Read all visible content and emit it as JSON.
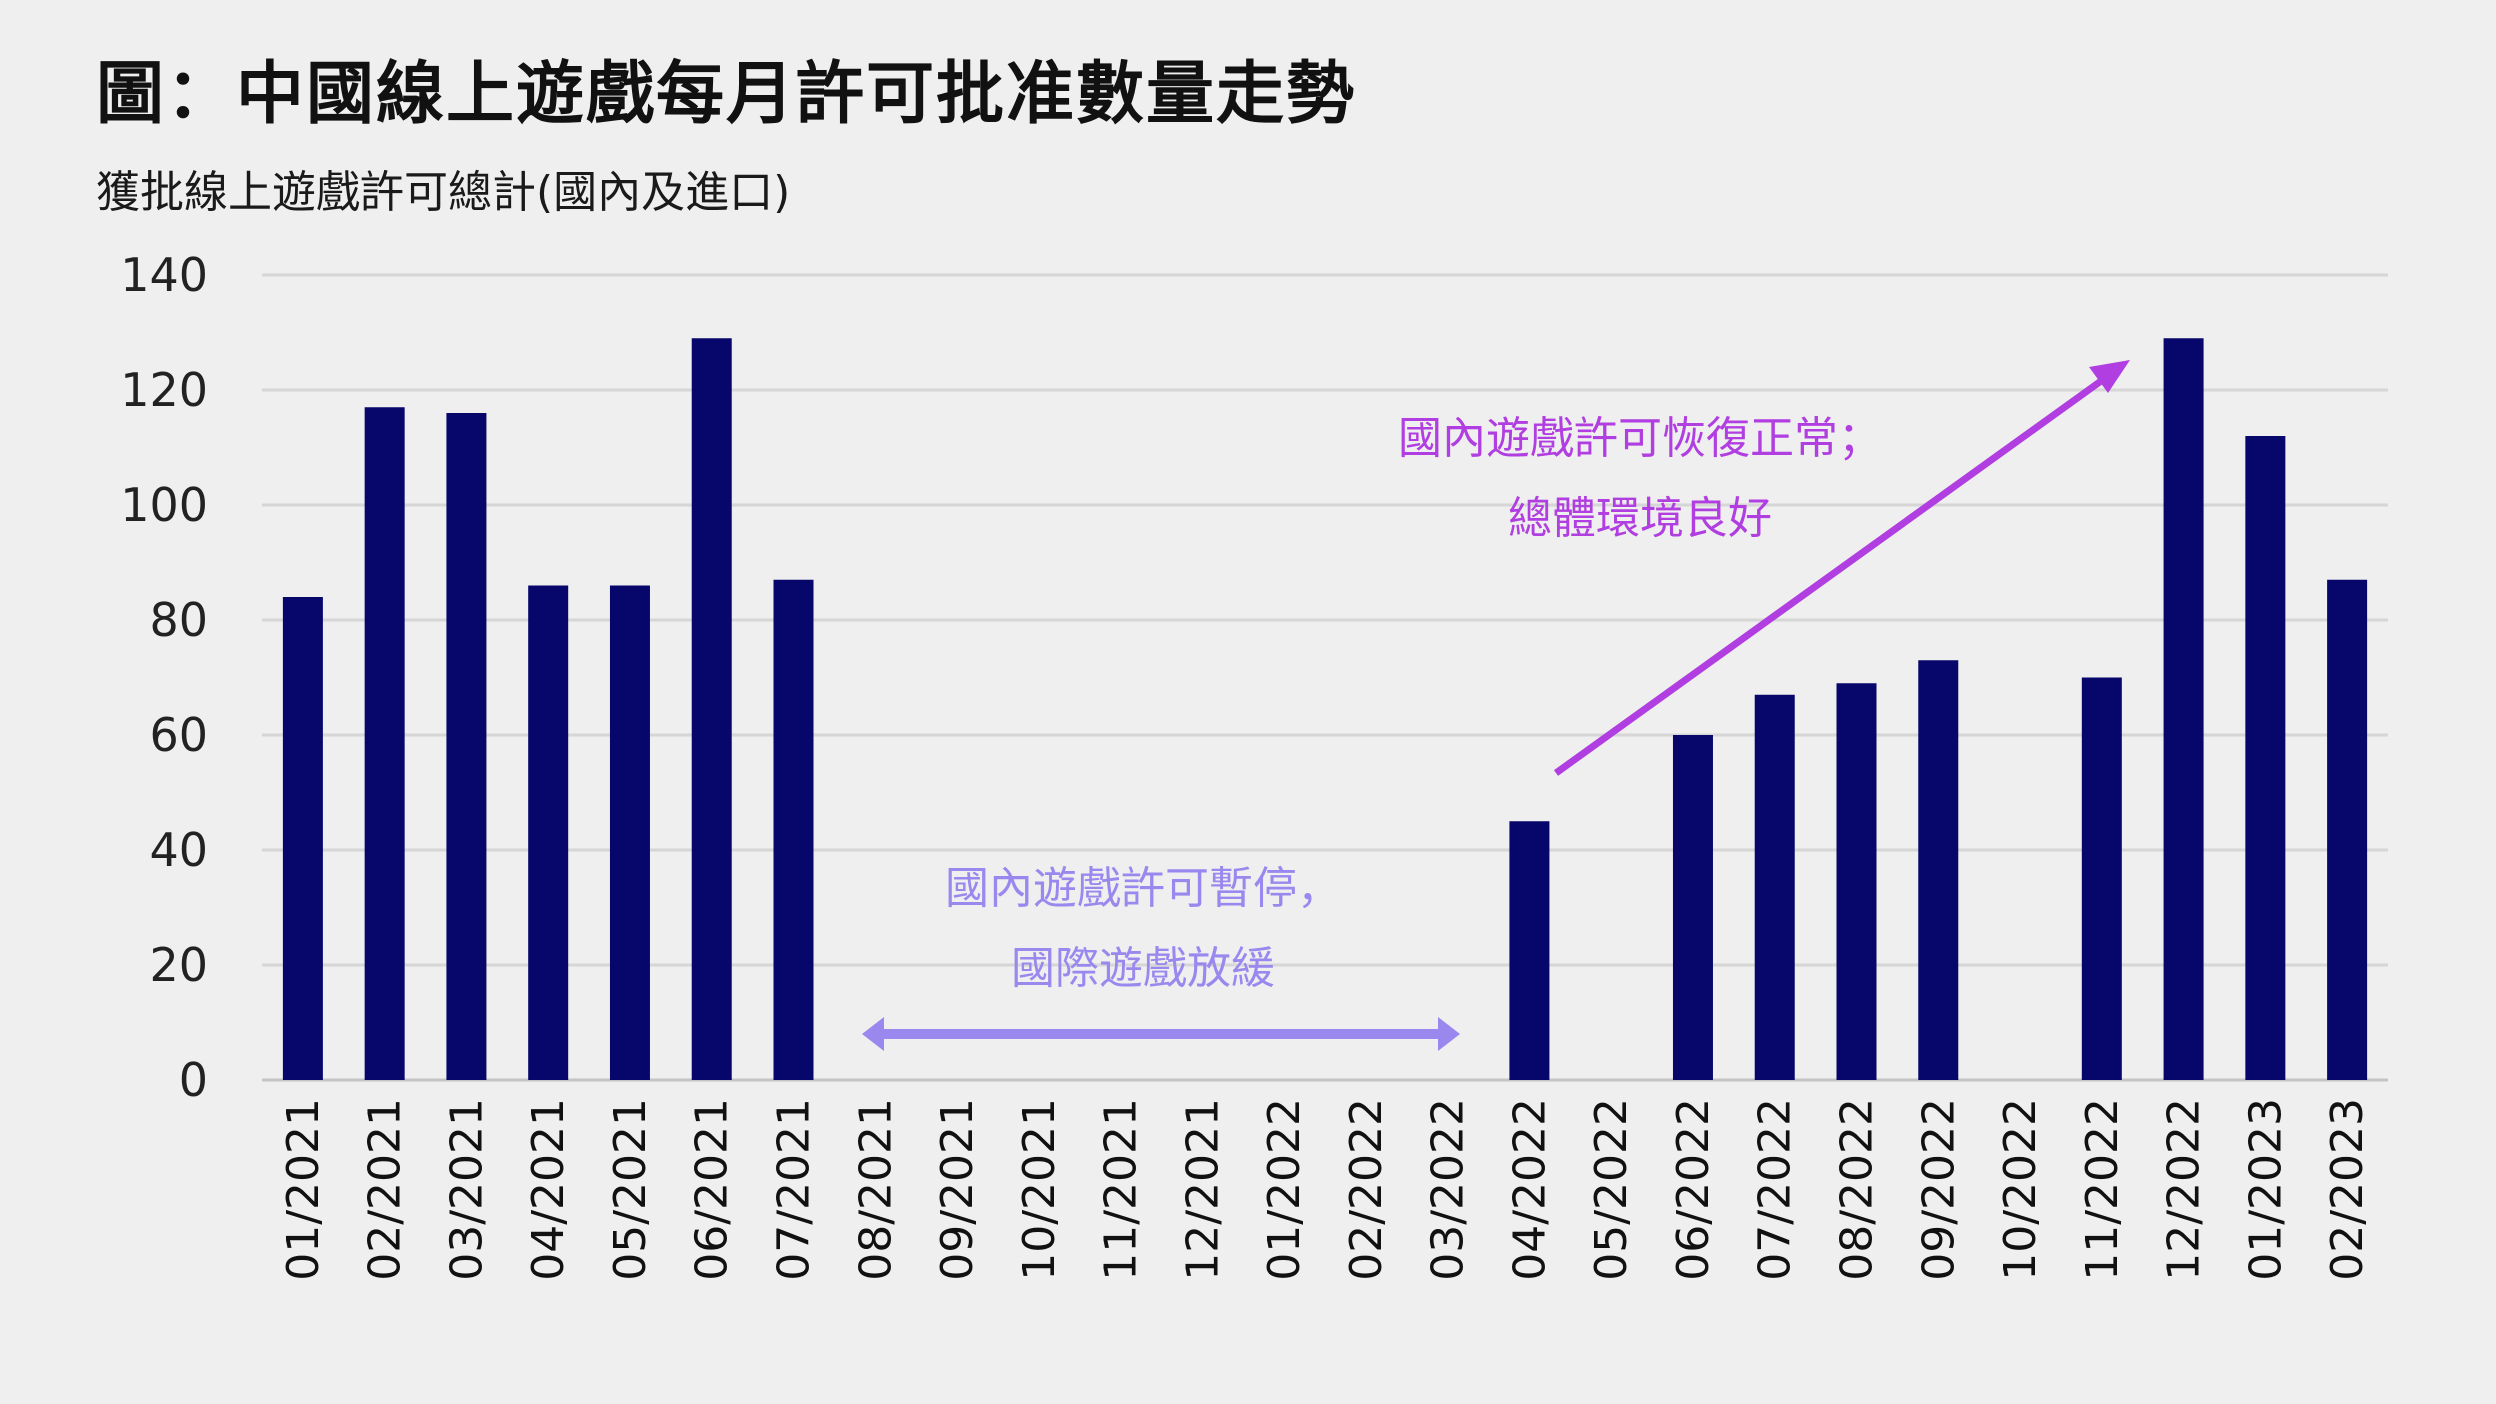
{
  "chart_data": {
    "type": "bar",
    "title": "圖：中國線上遊戲每月許可批准數量走勢",
    "subtitle": "獲批線上遊戲許可總計(國內及進口)",
    "categories": [
      "01/2021",
      "02/2021",
      "03/2021",
      "04/2021",
      "05/2021",
      "06/2021",
      "07/2021",
      "08/2021",
      "09/2021",
      "10/2021",
      "11/2021",
      "12/2021",
      "01/2022",
      "02/2022",
      "03/2022",
      "04/2022",
      "05/2022",
      "06/2022",
      "07/2022",
      "08/2022",
      "09/2022",
      "10/2022",
      "11/2022",
      "12/2022",
      "01/2023",
      "02/2023"
    ],
    "values": [
      84,
      117,
      116,
      86,
      86,
      129,
      87,
      0,
      0,
      0,
      0,
      0,
      0,
      0,
      0,
      45,
      0,
      60,
      67,
      69,
      73,
      0,
      70,
      129,
      112,
      87
    ],
    "ylim": [
      0,
      140
    ],
    "yticks": [
      0,
      20,
      40,
      60,
      80,
      100,
      120,
      140
    ],
    "grid": true,
    "bar_color": "#06066b",
    "annotations": [
      {
        "lines": [
          "國內遊戲許可暫停，",
          "國際遊戲放緩"
        ],
        "color": "#9a88ee",
        "marker": "double-arrow",
        "from": "08/2021",
        "to": "03/2022"
      },
      {
        "lines": [
          "國內遊戲許可恢復正常；",
          "總體環境良好"
        ],
        "color": "#b03ee0",
        "marker": "up-arrow",
        "from": "04/2022",
        "to": "12/2022"
      }
    ]
  }
}
